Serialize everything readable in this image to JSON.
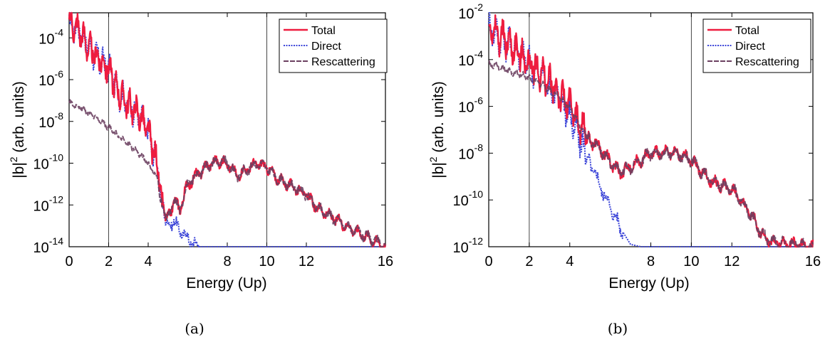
{
  "chart_data": [
    {
      "type": "line",
      "caption": "(a)",
      "xlabel": "Energy (Up)",
      "ylabel_base": "|b|",
      "ylabel_sup": "2",
      "ylabel_rest": " (arb. units)",
      "xlim": [
        0,
        16
      ],
      "ylim_exp": [
        -14,
        -2.8
      ],
      "y_scale": "log",
      "xticks": [
        0,
        2,
        4,
        8,
        10,
        12,
        16
      ],
      "yticks_exp": [
        -14,
        -12,
        -10,
        -8,
        -6,
        -4
      ],
      "vlines": [
        2,
        10
      ],
      "legend_position": "top-right",
      "series": [
        {
          "name": "Total",
          "color": "#ee1c3f",
          "style": "solid",
          "x": [
            0,
            0.5,
            1,
            1.5,
            2,
            2.5,
            3,
            3.5,
            4,
            4.5,
            4.7,
            5,
            5.3,
            5.6,
            6,
            7,
            7.5,
            8,
            8.5,
            9,
            9.5,
            10,
            10.5,
            11,
            11.5,
            12,
            12.5,
            13,
            14,
            15,
            16
          ],
          "y_exp": [
            -3.3,
            -3.6,
            -4.5,
            -5.0,
            -5.5,
            -6.6,
            -7.2,
            -7.6,
            -8.5,
            -10.2,
            -12.2,
            -12.6,
            -11.8,
            -12.2,
            -11.0,
            -10.1,
            -9.9,
            -10.0,
            -10.6,
            -10.3,
            -10.0,
            -10.2,
            -10.7,
            -11.0,
            -11.2,
            -11.5,
            -12.1,
            -12.4,
            -13.0,
            -13.5,
            -14.0
          ]
        },
        {
          "name": "Direct",
          "color": "#3b44d8",
          "style": "dotted",
          "x": [
            0,
            0.5,
            1,
            1.5,
            2,
            2.5,
            3,
            3.5,
            4,
            4.5,
            4.7,
            5,
            5.3,
            5.6,
            6,
            6.5,
            7,
            8,
            10,
            12,
            14,
            16
          ],
          "y_exp": [
            -3.3,
            -3.6,
            -4.5,
            -5.0,
            -5.5,
            -6.6,
            -7.2,
            -7.6,
            -8.5,
            -10.2,
            -12.2,
            -12.9,
            -12.8,
            -13.2,
            -13.6,
            -14.0,
            -14.0,
            -14.0,
            -14.0,
            -14.0,
            -14.0,
            -14.0
          ]
        },
        {
          "name": "Rescattering",
          "color": "#6b4060",
          "style": "dashed",
          "x": [
            0,
            0.5,
            1,
            1.5,
            2,
            2.5,
            3,
            3.5,
            4,
            4.5,
            4.7,
            5,
            5.3,
            5.6,
            6,
            7,
            7.5,
            8,
            8.5,
            9,
            9.5,
            10,
            10.5,
            11,
            11.5,
            12,
            12.5,
            13,
            14,
            15,
            16
          ],
          "y_exp": [
            -7.1,
            -7.3,
            -7.6,
            -7.9,
            -8.3,
            -8.7,
            -9.1,
            -9.5,
            -10.0,
            -10.8,
            -12.2,
            -12.6,
            -11.8,
            -12.2,
            -11.0,
            -10.1,
            -9.9,
            -10.0,
            -10.6,
            -10.3,
            -10.0,
            -10.2,
            -10.7,
            -11.0,
            -11.2,
            -11.5,
            -12.1,
            -12.4,
            -13.0,
            -13.5,
            -14.0
          ]
        }
      ]
    },
    {
      "type": "line",
      "caption": "(b)",
      "xlabel": "Energy (Up)",
      "ylabel_base": "|b|",
      "ylabel_sup": "2",
      "ylabel_rest": " (arb. units)",
      "xlim": [
        0,
        16
      ],
      "ylim_exp": [
        -12,
        -2
      ],
      "y_scale": "log",
      "xticks": [
        0,
        2,
        4,
        8,
        10,
        12,
        16
      ],
      "yticks_exp": [
        -12,
        -10,
        -8,
        -6,
        -4,
        -2
      ],
      "vlines": [
        2,
        10
      ],
      "legend_position": "top-right",
      "series": [
        {
          "name": "Total",
          "color": "#ee1c3f",
          "style": "solid",
          "x": [
            0,
            0.5,
            1,
            1.5,
            2,
            2.5,
            3,
            3.5,
            4,
            4.5,
            5,
            5.5,
            6,
            6.5,
            7,
            7.5,
            8,
            8.5,
            9,
            9.5,
            10,
            10.5,
            11,
            11.5,
            12,
            12.5,
            13,
            13.5,
            14,
            15,
            16
          ],
          "y_exp": [
            -2.6,
            -3.0,
            -3.3,
            -3.7,
            -4.2,
            -4.5,
            -5.0,
            -5.5,
            -6.0,
            -6.8,
            -7.4,
            -7.8,
            -8.4,
            -8.8,
            -8.6,
            -8.3,
            -8.0,
            -8.0,
            -8.0,
            -8.1,
            -8.3,
            -8.8,
            -9.2,
            -9.4,
            -9.5,
            -10.1,
            -10.7,
            -11.5,
            -11.8,
            -11.9,
            -12.0
          ]
        },
        {
          "name": "Direct",
          "color": "#3b44d8",
          "style": "dotted",
          "x": [
            0,
            0.5,
            1,
            1.5,
            2,
            2.5,
            3,
            3.5,
            4,
            4.5,
            5,
            5.5,
            6,
            6.5,
            7,
            7.5,
            8,
            10,
            12,
            14,
            16
          ],
          "y_exp": [
            -2.6,
            -3.0,
            -3.3,
            -3.7,
            -4.2,
            -4.6,
            -5.1,
            -5.7,
            -6.4,
            -7.4,
            -8.4,
            -9.4,
            -10.3,
            -11.2,
            -11.9,
            -12.0,
            -12.0,
            -12.0,
            -12.0,
            -12.0,
            -12.0
          ]
        },
        {
          "name": "Rescattering",
          "color": "#6b4060",
          "style": "dashed",
          "x": [
            0,
            0.5,
            1,
            1.5,
            2,
            2.5,
            3,
            3.5,
            4,
            4.5,
            5,
            5.5,
            6,
            6.5,
            7,
            7.5,
            8,
            8.5,
            9,
            9.5,
            10,
            10.5,
            11,
            11.5,
            12,
            12.5,
            13,
            13.5,
            14,
            15,
            16
          ],
          "y_exp": [
            -4.2,
            -4.3,
            -4.5,
            -4.6,
            -4.8,
            -5.0,
            -5.3,
            -5.6,
            -6.1,
            -6.8,
            -7.4,
            -7.8,
            -8.4,
            -8.8,
            -8.6,
            -8.3,
            -8.0,
            -8.0,
            -8.0,
            -8.1,
            -8.3,
            -8.8,
            -9.2,
            -9.4,
            -9.5,
            -10.1,
            -10.7,
            -11.5,
            -11.8,
            -11.9,
            -12.0
          ]
        }
      ]
    }
  ]
}
